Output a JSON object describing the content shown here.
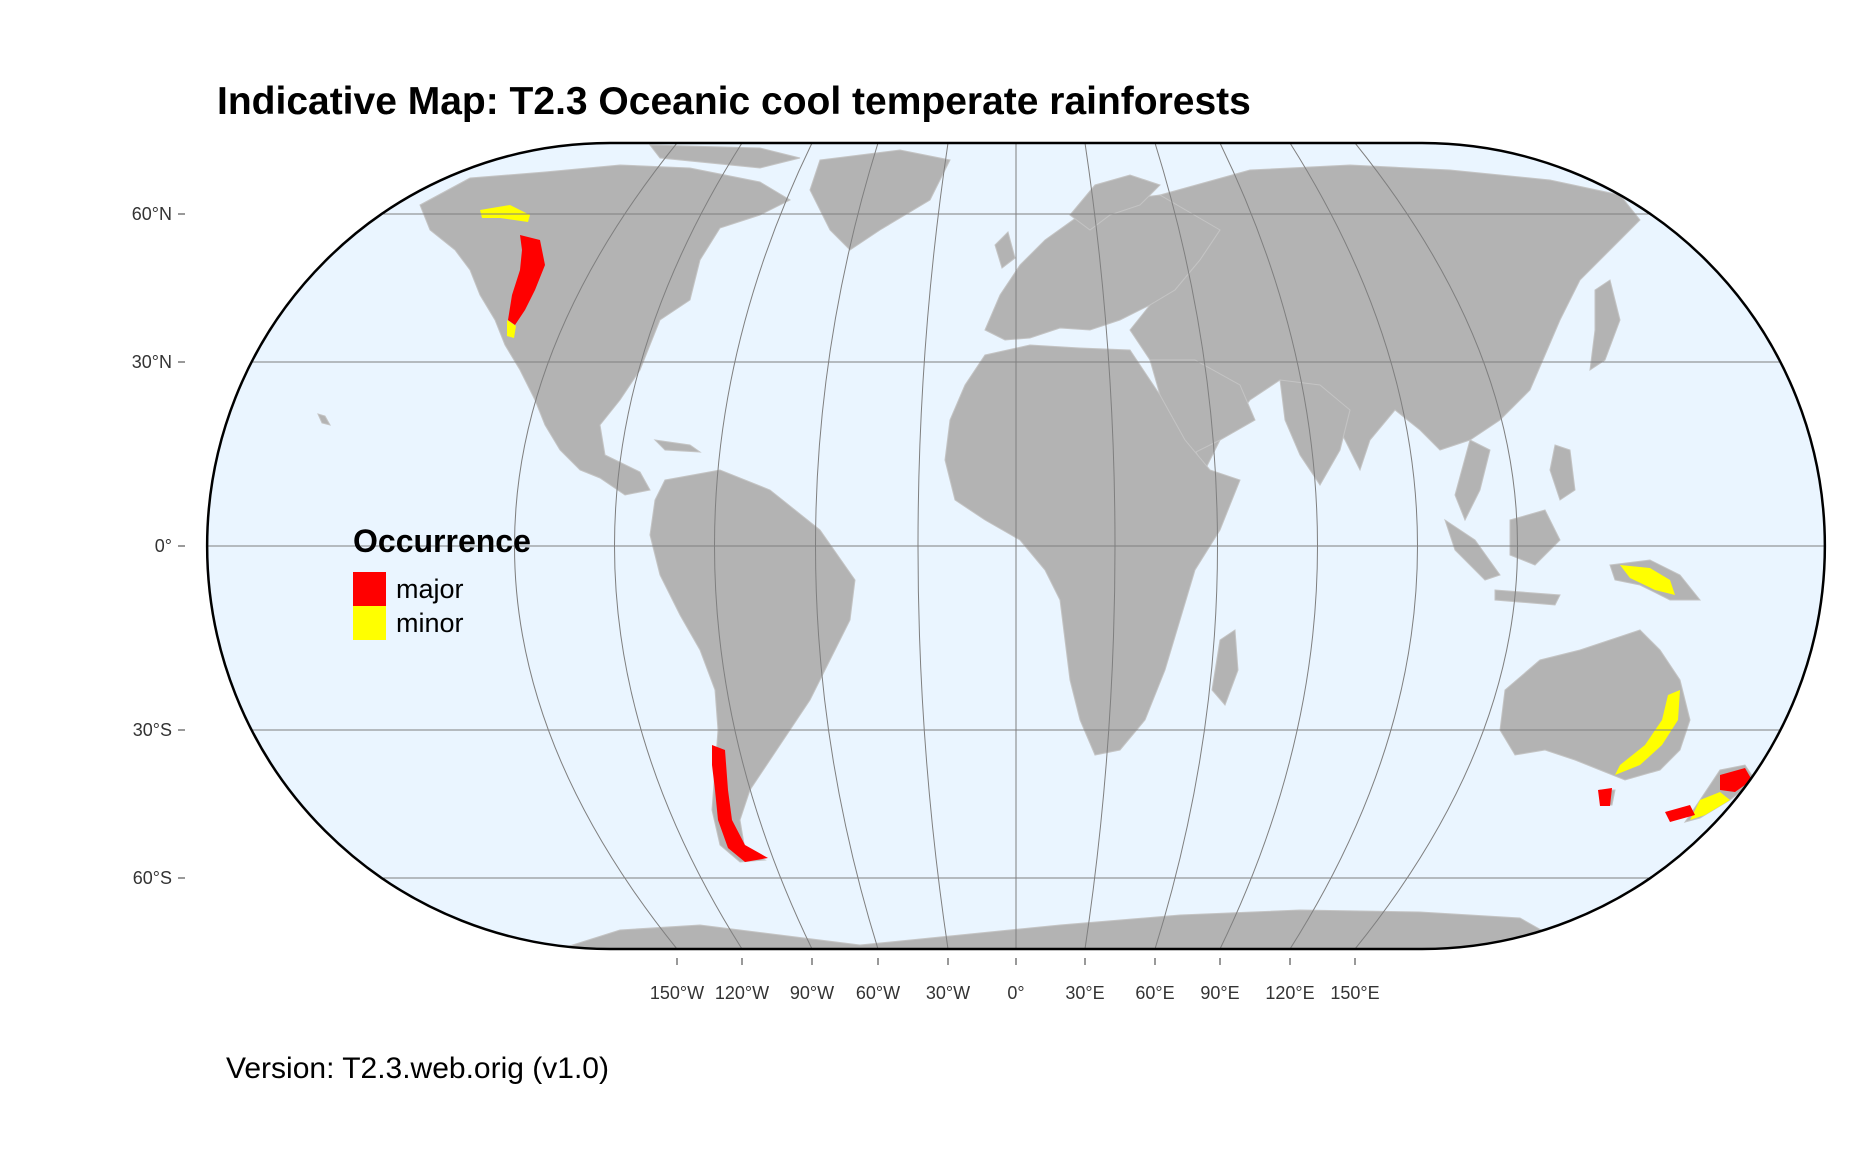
{
  "title": "Indicative Map: T2.3 Oceanic cool temperate rainforests",
  "version": "Version: T2.3.web.orig (v1.0)",
  "legend": {
    "title": "Occurrence",
    "items": [
      {
        "label": "major",
        "color": "#ff0000"
      },
      {
        "label": "minor",
        "color": "#ffff00"
      }
    ]
  },
  "axes": {
    "lat_labels": [
      "60°N",
      "30°N",
      "0°",
      "30°S",
      "60°S"
    ],
    "lon_labels": [
      "150°W",
      "120°W",
      "90°W",
      "60°W",
      "30°W",
      "0°",
      "30°E",
      "60°E",
      "90°E",
      "120°E",
      "150°E"
    ]
  },
  "colors": {
    "ocean": "#eaf5ff",
    "land": "#b3b3b3",
    "graticule": "#7f7f7f",
    "border": "#000000"
  },
  "regions": [
    {
      "name": "Pacific Northwest North America",
      "class": "major"
    },
    {
      "name": "Southern Alaska coast",
      "class": "minor"
    },
    {
      "name": "Southern Chile",
      "class": "major"
    },
    {
      "name": "New Guinea highlands",
      "class": "minor"
    },
    {
      "name": "Eastern Australia",
      "class": "minor"
    },
    {
      "name": "Tasmania",
      "class": "major"
    },
    {
      "name": "New Zealand",
      "class": "major"
    }
  ]
}
